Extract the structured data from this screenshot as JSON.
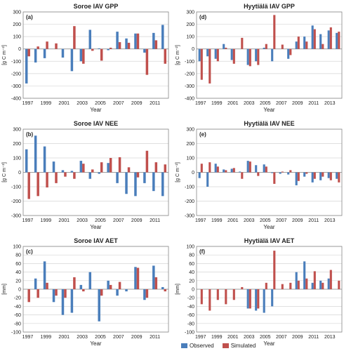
{
  "colors": {
    "observed": "#4a7ebb",
    "simulated": "#c0504d",
    "grid": "#d6d6d6",
    "axis": "#888888",
    "text": "#222222"
  },
  "legend": {
    "observed": "Observed",
    "simulated": "Simulated"
  },
  "chart_data": [
    {
      "type": "bar",
      "panel": "a",
      "title": "Soroe IAV GPP",
      "panel_label": "(a)",
      "ylabel": "[g C m⁻²]",
      "xlabel": "Year",
      "ylim": [
        -400,
        300
      ],
      "yticks": [
        -400,
        -300,
        -200,
        -100,
        0,
        100,
        200,
        300
      ],
      "categories": [
        "1997",
        "1998",
        "1999",
        "2000",
        "2001",
        "2002",
        "2003",
        "2004",
        "2005",
        "2006",
        "2007",
        "2008",
        "2009",
        "2010",
        "2011",
        "2012"
      ],
      "xtick_labels": [
        "1997",
        "1999",
        "2001",
        "2003",
        "2005",
        "2007",
        "2009",
        "2011"
      ],
      "series": [
        {
          "name": "Observed",
          "values": [
            -280,
            -110,
            -75,
            0,
            -70,
            -180,
            -100,
            155,
            5,
            -10,
            140,
            85,
            125,
            -30,
            130,
            195
          ]
        },
        {
          "name": "Simulated",
          "values": [
            -60,
            20,
            60,
            45,
            0,
            185,
            -120,
            -15,
            -95,
            10,
            55,
            50,
            125,
            -210,
            70,
            -120
          ]
        }
      ]
    },
    {
      "type": "bar",
      "panel": "d",
      "title": "Hyytiälä IAV GPP",
      "panel_label": "(d)",
      "ylabel": "[g C m⁻²]",
      "xlabel": "Year",
      "ylim": [
        -400,
        300
      ],
      "yticks": [
        -400,
        -300,
        -200,
        -100,
        0,
        100,
        200,
        300
      ],
      "categories": [
        "1997",
        "1998",
        "1999",
        "2000",
        "2001",
        "2002",
        "2003",
        "2004",
        "2005",
        "2006",
        "2007",
        "2008",
        "2009",
        "2010",
        "2011",
        "2012",
        "2013",
        "2014"
      ],
      "xtick_labels": [
        "1997",
        "1999",
        "2001",
        "2003",
        "2005",
        "2007",
        "2009",
        "2011",
        "2013"
      ],
      "series": [
        {
          "name": "Observed",
          "values": [
            -100,
            -60,
            -80,
            40,
            -90,
            0,
            -130,
            -100,
            10,
            -100,
            0,
            -80,
            60,
            100,
            190,
            120,
            150,
            130
          ]
        },
        {
          "name": "Simulated",
          "values": [
            -250,
            -280,
            -100,
            10,
            -120,
            90,
            -140,
            -130,
            40,
            275,
            35,
            -50,
            100,
            60,
            160,
            40,
            175,
            140
          ]
        }
      ]
    },
    {
      "type": "bar",
      "panel": "b",
      "title": "Soroe IAV NEE",
      "panel_label": "(b)",
      "ylabel": "[g C m⁻²]",
      "xlabel": "Year",
      "ylim": [
        -300,
        300
      ],
      "yticks": [
        -300,
        -200,
        -100,
        0,
        100,
        200,
        300
      ],
      "categories": [
        "1997",
        "1998",
        "1999",
        "2000",
        "2001",
        "2002",
        "2003",
        "2004",
        "2005",
        "2006",
        "2007",
        "2008",
        "2009",
        "2010",
        "2011",
        "2012"
      ],
      "xtick_labels": [
        "1997",
        "1999",
        "2001",
        "2003",
        "2005",
        "2007",
        "2009",
        "2011"
      ],
      "series": [
        {
          "name": "Observed",
          "values": [
            160,
            255,
            180,
            75,
            15,
            10,
            80,
            -45,
            -10,
            65,
            -75,
            -150,
            -165,
            -75,
            -130,
            -165
          ]
        },
        {
          "name": "Simulated",
          "values": [
            -185,
            -165,
            -105,
            -75,
            -30,
            -45,
            60,
            20,
            70,
            100,
            105,
            35,
            -35,
            150,
            70,
            55
          ]
        }
      ]
    },
    {
      "type": "bar",
      "panel": "e",
      "title": "Hyytiälä IAV NEE",
      "panel_label": "(e)",
      "ylabel": "[g C m⁻²]",
      "xlabel": "Year",
      "ylim": [
        -300,
        300
      ],
      "yticks": [
        -300,
        -200,
        -100,
        0,
        100,
        200,
        300
      ],
      "categories": [
        "1997",
        "1998",
        "1999",
        "2000",
        "2001",
        "2002",
        "2003",
        "2004",
        "2005",
        "2006",
        "2007",
        "2008",
        "2009",
        "2010",
        "2011",
        "2012",
        "2013",
        "2014"
      ],
      "xtick_labels": [
        "1997",
        "1999",
        "2001",
        "2003",
        "2005",
        "2007",
        "2009",
        "2011",
        "2013"
      ],
      "series": [
        {
          "name": "Observed",
          "values": [
            -40,
            -100,
            60,
            20,
            25,
            5,
            80,
            50,
            55,
            -5,
            -10,
            -15,
            -90,
            -30,
            -70,
            -55,
            -40,
            -45
          ]
        },
        {
          "name": "Simulated",
          "values": [
            60,
            70,
            40,
            15,
            30,
            -45,
            75,
            -25,
            40,
            -80,
            5,
            15,
            -60,
            -10,
            -45,
            -30,
            -55,
            -70
          ]
        }
      ]
    },
    {
      "type": "bar",
      "panel": "c",
      "title": "Soroe IAV AET",
      "panel_label": "(c)",
      "ylabel": "[mm]",
      "xlabel": "Year",
      "ylim": [
        -100,
        100
      ],
      "yticks": [
        -100,
        -80,
        -60,
        -40,
        -20,
        0,
        20,
        40,
        60,
        80,
        100
      ],
      "categories": [
        "1997",
        "1998",
        "1999",
        "2000",
        "2001",
        "2002",
        "2003",
        "2004",
        "2005",
        "2006",
        "2007",
        "2008",
        "2009",
        "2010",
        "2011",
        "2012"
      ],
      "xtick_labels": [
        "1997",
        "1999",
        "2001",
        "2003",
        "2005",
        "2007",
        "2009",
        "2011"
      ],
      "series": [
        {
          "name": "Observed",
          "values": [
            0,
            25,
            65,
            -30,
            -60,
            -55,
            10,
            40,
            -75,
            20,
            -15,
            -5,
            52,
            -25,
            55,
            5
          ]
        },
        {
          "name": "Simulated",
          "values": [
            -30,
            -20,
            15,
            -15,
            -20,
            28,
            -5,
            0,
            -15,
            10,
            17,
            0,
            50,
            -20,
            28,
            -5
          ]
        }
      ]
    },
    {
      "type": "bar",
      "panel": "f",
      "title": "Hyytiälä IAV AET",
      "panel_label": "(f)",
      "ylabel": "[mm]",
      "xlabel": "Year",
      "ylim": [
        -100,
        100
      ],
      "yticks": [
        -100,
        -80,
        -60,
        -40,
        -20,
        0,
        20,
        40,
        60,
        80,
        100
      ],
      "categories": [
        "1997",
        "1998",
        "1999",
        "2000",
        "2001",
        "2002",
        "2003",
        "2004",
        "2005",
        "2006",
        "2007",
        "2008",
        "2009",
        "2010",
        "2011",
        "2012",
        "2013",
        "2014"
      ],
      "xtick_labels": [
        "1997",
        "1999",
        "2001",
        "2003",
        "2005",
        "2007",
        "2009",
        "2011",
        "2013"
      ],
      "series": [
        {
          "name": "Observed",
          "values": [
            0,
            0,
            0,
            0,
            0,
            0,
            -45,
            -50,
            -55,
            -40,
            0,
            0,
            40,
            65,
            15,
            20,
            25,
            0
          ]
        },
        {
          "name": "Simulated",
          "values": [
            -35,
            -50,
            -25,
            -35,
            -25,
            5,
            -45,
            -45,
            15,
            90,
            12,
            15,
            20,
            25,
            42,
            15,
            45,
            20
          ]
        }
      ]
    }
  ]
}
